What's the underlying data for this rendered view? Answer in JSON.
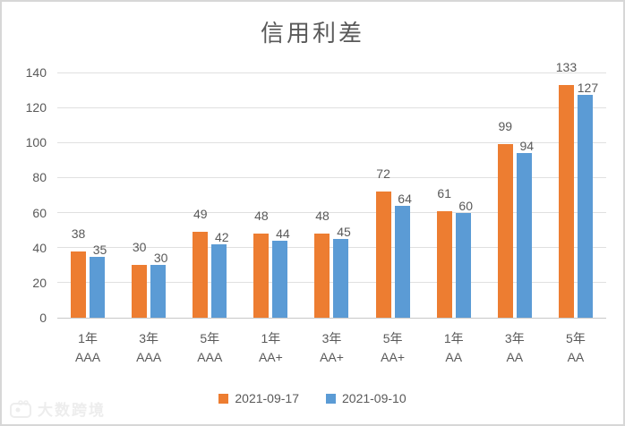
{
  "watermark": "大数跨境",
  "chart_data": {
    "type": "bar",
    "title": "信用利差",
    "categories": [
      "1年 AAA",
      "3年 AAA",
      "5年 AAA",
      "1年 AA+",
      "3年 AA+",
      "5年 AA+",
      "1年 AA",
      "3年 AA",
      "5年 AA"
    ],
    "categories_two_line": [
      [
        "1年",
        "AAA"
      ],
      [
        "3年",
        "AAA"
      ],
      [
        "5年",
        "AAA"
      ],
      [
        "1年",
        "AA+"
      ],
      [
        "3年",
        "AA+"
      ],
      [
        "5年",
        "AA+"
      ],
      [
        "1年",
        "AA"
      ],
      [
        "3年",
        "AA"
      ],
      [
        "5年",
        "AA"
      ]
    ],
    "series": [
      {
        "name": "2021-09-17",
        "color": "#ED7D31",
        "values": [
          38,
          30,
          49,
          48,
          48,
          72,
          61,
          99,
          133
        ]
      },
      {
        "name": "2021-09-10",
        "color": "#5B9BD5",
        "values": [
          35,
          30,
          42,
          44,
          45,
          64,
          60,
          94,
          127
        ]
      }
    ],
    "xlabel": "",
    "ylabel": "",
    "ylim": [
      0,
      140
    ],
    "yticks": [
      0,
      20,
      40,
      60,
      80,
      100,
      120,
      140
    ],
    "grid": true,
    "legend_position": "bottom",
    "text_color": "#595959",
    "gridline_color": "#e0e0e0"
  }
}
